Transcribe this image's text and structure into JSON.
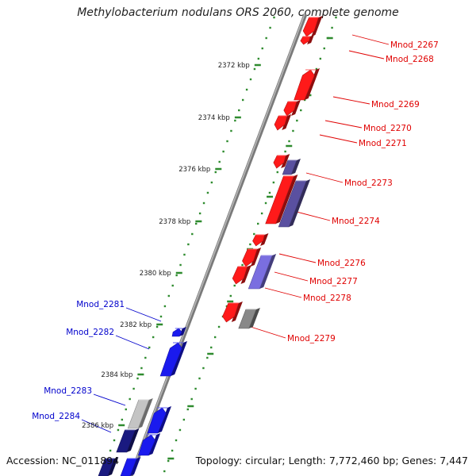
{
  "title": "Methylobacterium nodulans ORS 2060, complete genome",
  "footer": {
    "accession": "Accession: NC_011894",
    "topology": "Topology: circular; Length: 7,772,460 bp; Genes: 7,447"
  },
  "colors": {
    "backbone": "#8a8a8a",
    "tick": "#2e8b2e",
    "forward_gene": "#ff1a1a",
    "reverse_gene": "#1a1aee",
    "forward_label": "#e00000",
    "reverse_label": "#0000cc",
    "gray_gene": "#888888",
    "purple_gene": "#5a50a0"
  },
  "scale_labels": [
    "2372 kbp",
    "2374 kbp",
    "2376 kbp",
    "2378 kbp",
    "2380 kbp",
    "2382 kbp",
    "2384 kbp",
    "2386 kbp"
  ],
  "forward_gene_labels": [
    "Mnod_2267",
    "Mnod_2268",
    "Mnod_2269",
    "Mnod_2270",
    "Mnod_2271",
    "Mnod_2273",
    "Mnod_2274",
    "Mnod_2276",
    "Mnod_2277",
    "Mnod_2278",
    "Mnod_2279"
  ],
  "reverse_gene_labels": [
    "Mnod_2281",
    "Mnod_2282",
    "Mnod_2283",
    "Mnod_2284"
  ]
}
